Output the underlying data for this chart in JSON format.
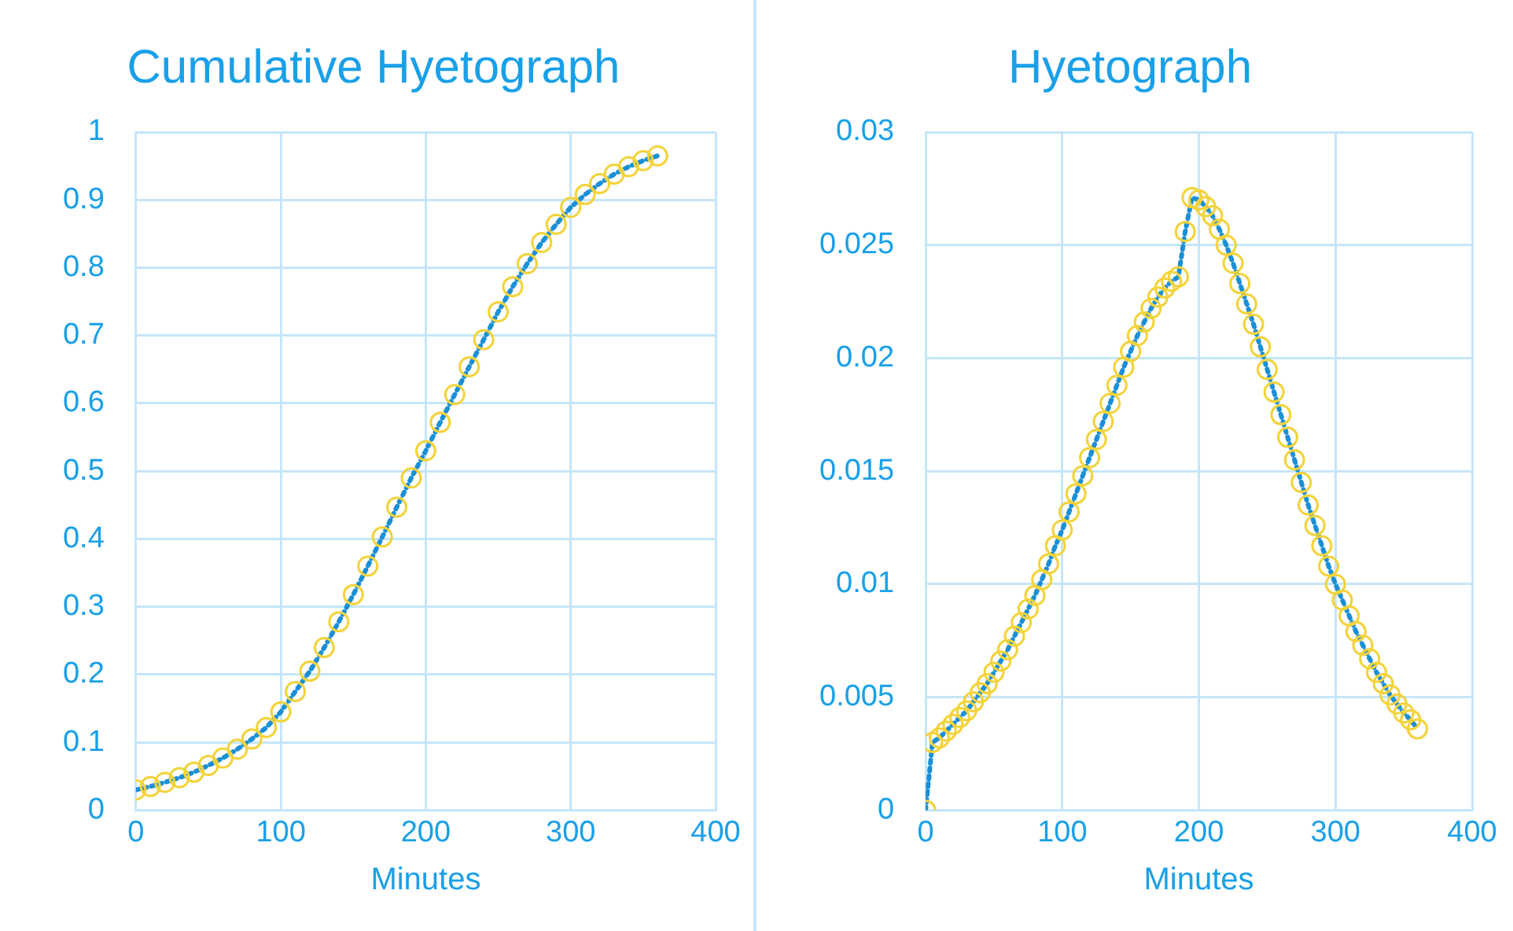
{
  "chart_data": [
    {
      "type": "line",
      "title": "Cumulative Hyetograph",
      "xlabel": "Minutes",
      "marker": "circle",
      "line_style": "dotted",
      "grid": true,
      "xlim": [
        0,
        400
      ],
      "xticks": [
        0,
        100,
        200,
        300,
        400
      ],
      "ylim": [
        0,
        1
      ],
      "yticks": [
        0,
        0.1,
        0.2,
        0.3,
        0.4,
        0.5,
        0.6,
        0.7,
        0.8,
        0.9,
        1
      ],
      "x": [
        0,
        10,
        20,
        30,
        40,
        50,
        60,
        70,
        80,
        90,
        100,
        110,
        120,
        130,
        140,
        150,
        160,
        170,
        180,
        190,
        200,
        210,
        220,
        230,
        240,
        250,
        260,
        270,
        280,
        290,
        300,
        310,
        320,
        330,
        340,
        350,
        360
      ],
      "series": [
        {
          "color": "#1a8fd6",
          "values": [
            0.03,
            0.035,
            0.041,
            0.048,
            0.056,
            0.066,
            0.077,
            0.09,
            0.105,
            0.122,
            0.145,
            0.175,
            0.205,
            0.24,
            0.278,
            0.318,
            0.36,
            0.403,
            0.447,
            0.49,
            0.53,
            0.572,
            0.613,
            0.654,
            0.694,
            0.735,
            0.772,
            0.806,
            0.837,
            0.864,
            0.889,
            0.908,
            0.924,
            0.938,
            0.949,
            0.958,
            0.965
          ]
        }
      ]
    },
    {
      "type": "line",
      "title": "Hyetograph",
      "xlabel": "Minutes",
      "marker": "circle",
      "line_style": "dotted",
      "grid": true,
      "xlim": [
        0,
        400
      ],
      "xticks": [
        0,
        100,
        200,
        300,
        400
      ],
      "ylim": [
        0,
        0.03
      ],
      "yticks": [
        0,
        0.005,
        0.01,
        0.015,
        0.02,
        0.025,
        0.03
      ],
      "x": [
        0,
        5,
        10,
        15,
        20,
        25,
        30,
        35,
        40,
        45,
        50,
        55,
        60,
        65,
        70,
        75,
        80,
        85,
        90,
        95,
        100,
        105,
        110,
        115,
        120,
        125,
        130,
        135,
        140,
        145,
        150,
        155,
        160,
        165,
        170,
        175,
        180,
        185,
        190,
        195,
        200,
        205,
        210,
        215,
        220,
        225,
        230,
        235,
        240,
        245,
        250,
        255,
        260,
        265,
        270,
        275,
        280,
        285,
        290,
        295,
        300,
        305,
        310,
        315,
        320,
        325,
        330,
        335,
        340,
        345,
        350,
        355,
        360
      ],
      "series": [
        {
          "color": "#1a8fd6",
          "values": [
            0,
            0.003,
            0.0032,
            0.0035,
            0.0038,
            0.0041,
            0.0044,
            0.0048,
            0.0052,
            0.0056,
            0.0061,
            0.0066,
            0.0071,
            0.0077,
            0.0083,
            0.0089,
            0.0095,
            0.0102,
            0.0109,
            0.0117,
            0.0124,
            0.0132,
            0.014,
            0.0148,
            0.0156,
            0.0164,
            0.0172,
            0.018,
            0.0188,
            0.0196,
            0.0203,
            0.021,
            0.0216,
            0.0222,
            0.0227,
            0.0231,
            0.0234,
            0.0236,
            0.0256,
            0.0271,
            0.027,
            0.0267,
            0.0263,
            0.0257,
            0.025,
            0.0242,
            0.0233,
            0.0224,
            0.0215,
            0.0205,
            0.0195,
            0.0185,
            0.0175,
            0.0165,
            0.0155,
            0.0145,
            0.0135,
            0.0126,
            0.0117,
            0.0108,
            0.01,
            0.0093,
            0.0086,
            0.0079,
            0.0073,
            0.0067,
            0.0061,
            0.0056,
            0.0051,
            0.0047,
            0.0043,
            0.004,
            0.0036
          ]
        }
      ]
    }
  ]
}
